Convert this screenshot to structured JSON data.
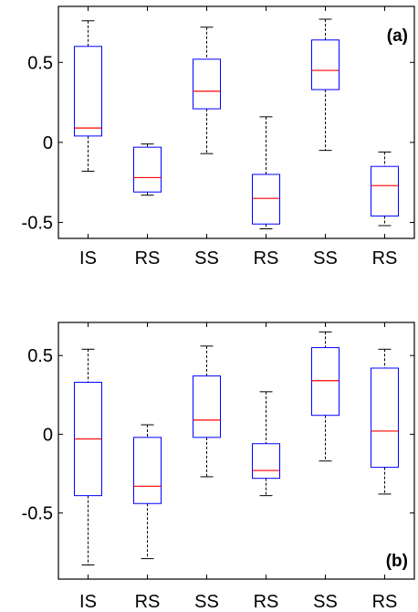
{
  "chart_data": [
    {
      "type": "box",
      "panel_label": "(a)",
      "panel_label_position": "top-right",
      "categories": [
        "IS",
        "RS",
        "SS",
        "RS",
        "SS",
        "RS"
      ],
      "ylim": [
        -0.6,
        0.85
      ],
      "yticks": [
        -0.5,
        0,
        0.5
      ],
      "ytick_labels": [
        "-0.5",
        "0",
        "0.5"
      ],
      "boxes": [
        {
          "whisker_low": -0.18,
          "q1": 0.04,
          "median": 0.09,
          "q3": 0.6,
          "whisker_high": 0.76
        },
        {
          "whisker_low": -0.33,
          "q1": -0.31,
          "median": -0.22,
          "q3": -0.03,
          "whisker_high": -0.01
        },
        {
          "whisker_low": -0.07,
          "q1": 0.21,
          "median": 0.32,
          "q3": 0.52,
          "whisker_high": 0.72
        },
        {
          "whisker_low": -0.54,
          "q1": -0.51,
          "median": -0.35,
          "q3": -0.2,
          "whisker_high": 0.16
        },
        {
          "whisker_low": -0.05,
          "q1": 0.33,
          "median": 0.45,
          "q3": 0.64,
          "whisker_high": 0.77
        },
        {
          "whisker_low": -0.52,
          "q1": -0.46,
          "median": -0.27,
          "q3": -0.15,
          "whisker_high": -0.06
        }
      ],
      "colors": {
        "box": "#0000ff",
        "median": "#ff0000",
        "whisker": "#000000"
      }
    },
    {
      "type": "box",
      "panel_label": "(b)",
      "panel_label_position": "bottom-right",
      "categories": [
        "IS",
        "RS",
        "SS",
        "RS",
        "SS",
        "RS"
      ],
      "ylim": [
        -0.92,
        0.71
      ],
      "yticks": [
        -0.5,
        0,
        0.5
      ],
      "ytick_labels": [
        "-0.5",
        "0",
        "0.5"
      ],
      "boxes": [
        {
          "whisker_low": -0.83,
          "q1": -0.39,
          "median": -0.03,
          "q3": 0.33,
          "whisker_high": 0.54
        },
        {
          "whisker_low": -0.79,
          "q1": -0.44,
          "median": -0.33,
          "q3": -0.02,
          "whisker_high": 0.06
        },
        {
          "whisker_low": -0.27,
          "q1": -0.02,
          "median": 0.09,
          "q3": 0.37,
          "whisker_high": 0.56
        },
        {
          "whisker_low": -0.39,
          "q1": -0.28,
          "median": -0.23,
          "q3": -0.06,
          "whisker_high": 0.27
        },
        {
          "whisker_low": -0.17,
          "q1": 0.12,
          "median": 0.34,
          "q3": 0.55,
          "whisker_high": 0.65
        },
        {
          "whisker_low": -0.38,
          "q1": -0.21,
          "median": 0.02,
          "q3": 0.42,
          "whisker_high": 0.54
        }
      ],
      "colors": {
        "box": "#0000ff",
        "median": "#ff0000",
        "whisker": "#000000"
      }
    }
  ]
}
